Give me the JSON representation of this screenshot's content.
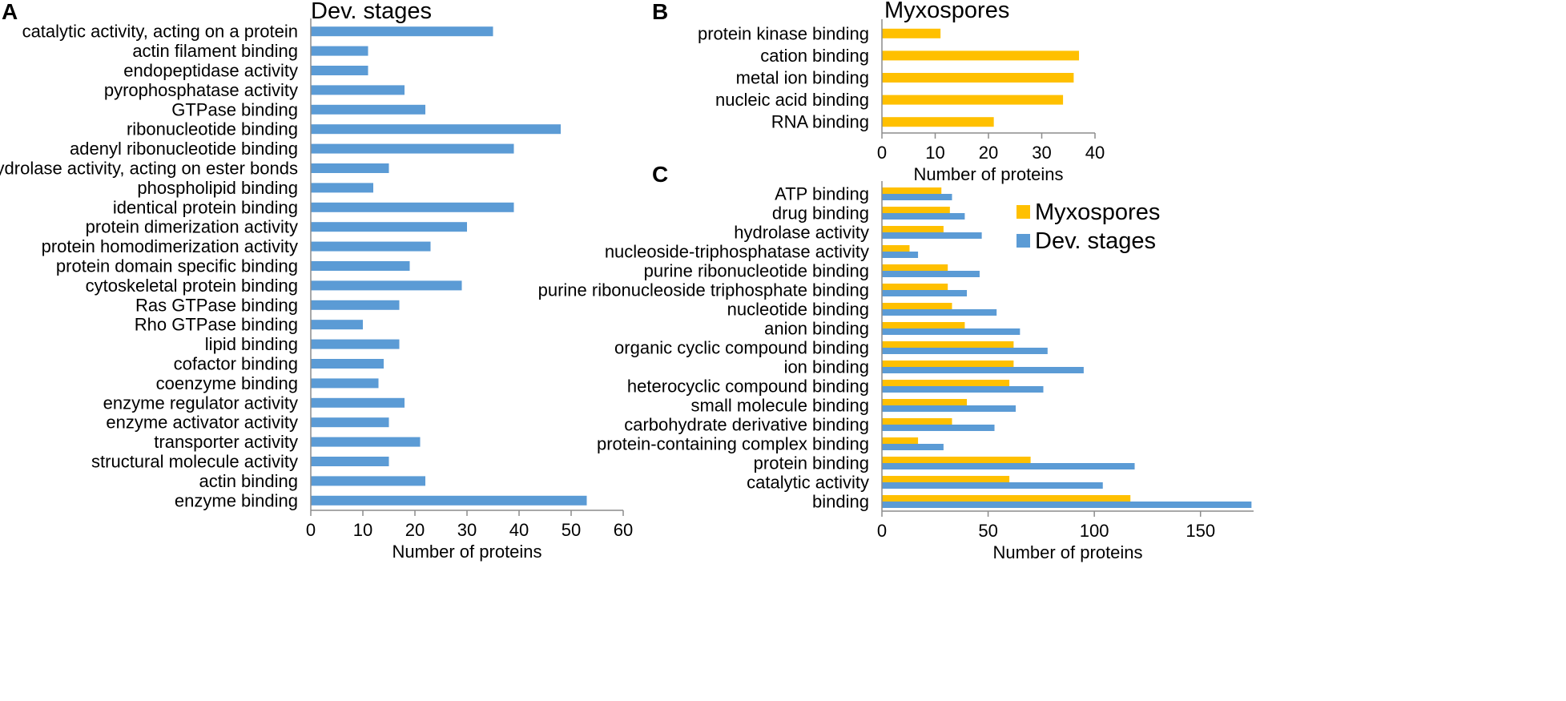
{
  "colors": {
    "dev_stages": "#5B9BD5",
    "myxospores": "#FFC000",
    "axis": "#8C8C8C"
  },
  "chart_data": [
    {
      "panel": "A",
      "type": "bar",
      "orientation": "horizontal",
      "title": "Dev. stages",
      "xlabel": "Number of proteins",
      "ylabel": "",
      "xlim": [
        0,
        60
      ],
      "xticks": [
        0,
        10,
        20,
        30,
        40,
        50,
        60
      ],
      "grid": false,
      "categories": [
        "catalytic activity, acting on a protein",
        "actin filament binding",
        "endopeptidase activity",
        "pyrophosphatase activity",
        "GTPase binding",
        "ribonucleotide binding",
        "adenyl ribonucleotide binding",
        "hydrolase activity, acting on ester bonds",
        "phospholipid binding",
        "identical protein binding",
        "protein dimerization activity",
        "protein homodimerization activity",
        "protein domain specific binding",
        "cytoskeletal protein binding",
        "Ras GTPase binding",
        "Rho GTPase binding",
        "lipid binding",
        "cofactor binding",
        "coenzyme binding",
        "enzyme regulator activity",
        "enzyme activator activity",
        "transporter activity",
        "structural molecule activity",
        "actin binding",
        "enzyme binding"
      ],
      "series": [
        {
          "name": "Dev. stages",
          "color_key": "dev_stages",
          "values": [
            35,
            11,
            11,
            18,
            22,
            48,
            39,
            15,
            12,
            39,
            30,
            23,
            19,
            29,
            17,
            10,
            17,
            14,
            13,
            18,
            15,
            21,
            15,
            22,
            53
          ]
        }
      ]
    },
    {
      "panel": "B",
      "type": "bar",
      "orientation": "horizontal",
      "title": "Myxospores",
      "xlabel": "Number of proteins",
      "ylabel": "",
      "xlim": [
        0,
        40
      ],
      "xticks": [
        0,
        10,
        20,
        30,
        40
      ],
      "grid": false,
      "categories": [
        "protein kinase binding",
        "cation binding",
        "metal ion binding",
        "nucleic acid binding",
        "RNA binding"
      ],
      "series": [
        {
          "name": "Myxospores",
          "color_key": "myxospores",
          "values": [
            11,
            37,
            36,
            34,
            21
          ]
        }
      ]
    },
    {
      "panel": "C",
      "type": "bar",
      "orientation": "horizontal",
      "title": "",
      "xlabel": "Number of proteins",
      "ylabel": "",
      "xlim": [
        0,
        175
      ],
      "xticks": [
        0,
        50,
        100,
        150
      ],
      "grid": false,
      "legend_position": "top-right",
      "categories": [
        "ATP binding",
        "drug binding",
        "hydrolase activity",
        "nucleoside-triphosphatase activity",
        "purine ribonucleotide binding",
        "purine ribonucleoside triphosphate binding",
        "nucleotide binding",
        "anion binding",
        "organic cyclic compound binding",
        "ion binding",
        "heterocyclic compound binding",
        "small molecule binding",
        "carbohydrate derivative binding",
        "protein-containing complex binding",
        "protein binding",
        "catalytic activity",
        "binding"
      ],
      "series": [
        {
          "name": "Myxospores",
          "color_key": "myxospores",
          "values": [
            28,
            32,
            29,
            13,
            31,
            31,
            33,
            39,
            62,
            62,
            60,
            40,
            33,
            17,
            70,
            60,
            117
          ]
        },
        {
          "name": "Dev. stages",
          "color_key": "dev_stages",
          "values": [
            33,
            39,
            47,
            17,
            46,
            40,
            54,
            65,
            78,
            95,
            76,
            63,
            53,
            29,
            119,
            104,
            174
          ]
        }
      ]
    }
  ]
}
